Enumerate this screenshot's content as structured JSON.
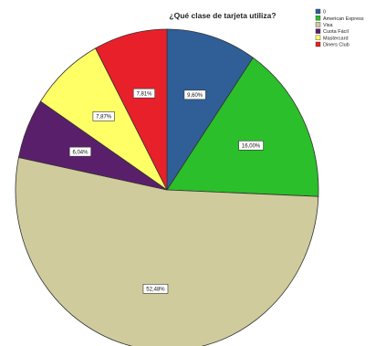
{
  "chart_data": {
    "type": "pie",
    "title": "¿Qué clase de tarjeta utiliza?",
    "categories": [
      "0",
      "American Express",
      "Visa",
      "Cuota Fácil",
      "Mastercard",
      "Diners Club"
    ],
    "values": [
      9.6,
      16.0,
      52.48,
      6.04,
      7.87,
      7.81
    ],
    "labels": [
      "9,60%",
      "16,00%",
      "52,48%",
      "6,04%",
      "7,87%",
      "7,81%"
    ],
    "colors": [
      "#2f5f96",
      "#2bbf2b",
      "#cfcb9c",
      "#5a1f6b",
      "#ffff66",
      "#e8202a"
    ],
    "legend_placement": "top-right",
    "start_angle_deg": 0,
    "direction": "clockwise"
  }
}
